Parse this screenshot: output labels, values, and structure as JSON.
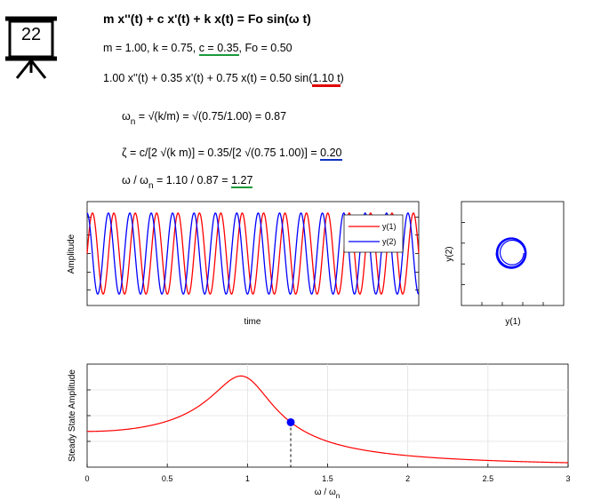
{
  "slide_number": "22",
  "equations": {
    "title": "m x''(t) + c x'(t) + k x(t) = Fo sin(ω t)",
    "params": {
      "prefix": "m = 1.00, k = 0.75, ",
      "c_part": "c = 0.35",
      "suffix": ", Fo = 0.50"
    },
    "specific": {
      "prefix": "1.00 x''(t) + 0.35 x'(t) + 0.75 x(t) = 0.50 sin(",
      "omega_part": "1.10 t",
      "suffix": ")"
    },
    "omega_n": {
      "symbol": "ω",
      "sub": "n",
      "rest": " = √(k/m) = √(0.75/1.00) = 0.87"
    },
    "zeta": {
      "prefix": "ζ = c/[2 √(k m)] = 0.35/[2 √(0.75 1.00)] = ",
      "value": "0.20"
    },
    "ratio": {
      "prefix": "ω / ω",
      "sub": "n",
      "mid": " = 1.10 / 0.87 = ",
      "value": "1.27"
    }
  },
  "colors": {
    "series1": "#ff0000",
    "series2": "#0000ff",
    "green_underline": "#1a9a3a",
    "red_underline": "#e00000",
    "blue_underline": "#1030c0",
    "marker": "#0000ff"
  },
  "chart_data": [
    {
      "type": "line",
      "ylabel": "Amplitude",
      "xlabel": "time",
      "grid": false,
      "legend": "top-right",
      "series": [
        {
          "name": "y(1)",
          "color": "#ff0000",
          "description": "displacement oscillation, ~15 cycles across window"
        },
        {
          "name": "y(2)",
          "color": "#0000ff",
          "description": "velocity oscillation, phase shifted"
        }
      ],
      "cycles": 15.5,
      "amplitude_rel": 0.78
    },
    {
      "type": "line",
      "xlabel": "y(1)",
      "ylabel": "y(2)",
      "description": "phase portrait spiral converging to ellipse",
      "series": [
        {
          "color": "#0000ff"
        }
      ]
    },
    {
      "type": "line",
      "ylabel": "Steady State Amplitude",
      "xlabel": "ω / ω",
      "xlabel_sub": "n",
      "xlim": [
        0,
        3
      ],
      "xticks": [
        "0",
        "0.5",
        "1",
        "1.5",
        "2",
        "2.5",
        "3"
      ],
      "grid": true,
      "zeta": 0.2,
      "marker_x": 1.27,
      "series": [
        {
          "color": "#ff0000"
        }
      ]
    }
  ]
}
